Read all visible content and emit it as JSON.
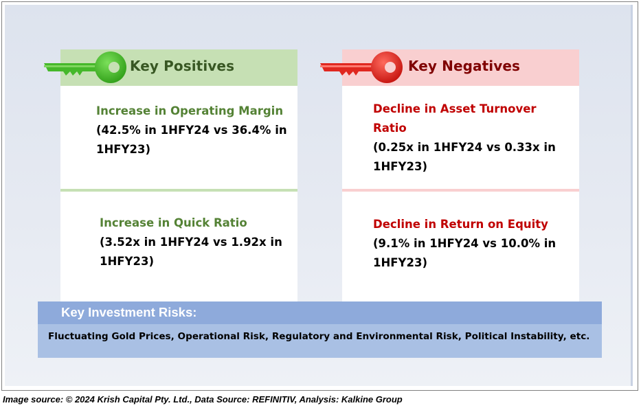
{
  "positives": {
    "title": "Key Positives",
    "items": [
      {
        "title": "Increase in Operating Margin",
        "body_line1": "(42.5% in 1HFY24 vs 36.4% in",
        "body_line2": "1HFY23)"
      },
      {
        "title": "Increase in Quick Ratio",
        "body_line1": "(3.52x in 1HFY24 vs 1.92x in",
        "body_line2": "1HFY23)"
      }
    ],
    "key_icon": "green-key-icon"
  },
  "negatives": {
    "title": "Key Negatives",
    "items": [
      {
        "title_line1": "Decline in Asset Turnover",
        "title_line2": "Ratio",
        "body_line1": "(0.25x in 1HFY24 vs 0.33x in",
        "body_line2": "1HFY23)"
      },
      {
        "title": "Decline in Return on Equity",
        "body_line1": "(9.1% in 1HFY24 vs 10.0% in",
        "body_line2": "1HFY23)"
      }
    ],
    "key_icon": "red-key-icon"
  },
  "risks": {
    "title": "Key Investment Risks:",
    "text": "Fluctuating Gold Prices, Operational Risk, Regulatory and Environmental Risk, Political Instability, etc."
  },
  "footer": {
    "source": "Image source: © 2024 Krish Capital Pty. Ltd., Data Source: REFINITIV, Analysis: Kalkine Group"
  },
  "colors": {
    "positive_accent": "#548235",
    "positive_band": "#c6e0b4",
    "negative_accent": "#c00000",
    "negative_band": "#f9cfd0",
    "risks_band": "#8eaadb",
    "key_green": "#3cb521",
    "key_red": "#e8231f"
  }
}
